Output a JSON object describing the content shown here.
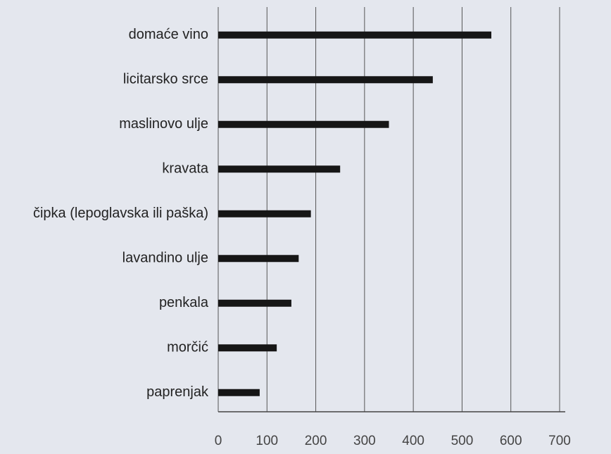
{
  "chart_data": {
    "type": "bar",
    "orientation": "horizontal",
    "categories": [
      "domaće vino",
      "licitarsko srce",
      "maslinovo ulje",
      "kravata",
      "čipka (lepoglavska ili paška)",
      "lavandino ulje",
      "penkala",
      "morčić",
      "paprenjak"
    ],
    "values": [
      560,
      440,
      350,
      250,
      190,
      165,
      150,
      120,
      85
    ],
    "color": "#161616",
    "xlim": [
      0,
      700
    ],
    "xticks": [
      0,
      100,
      200,
      300,
      400,
      500,
      600,
      700
    ],
    "grid": true
  }
}
